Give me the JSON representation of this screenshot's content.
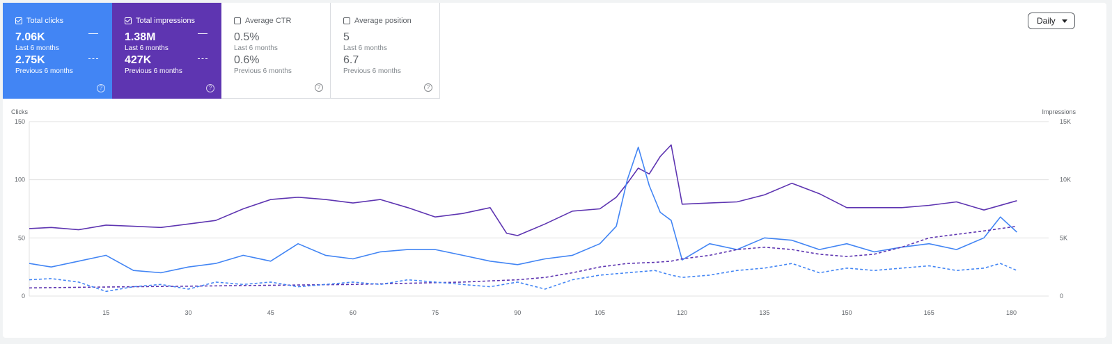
{
  "cards": [
    {
      "title": "Total clicks",
      "checked": true,
      "value_current": "7.06K",
      "label_current": "Last 6 months",
      "value_previous": "2.75K",
      "label_previous": "Previous 6 months",
      "help": "?"
    },
    {
      "title": "Total impressions",
      "checked": true,
      "value_current": "1.38M",
      "label_current": "Last 6 months",
      "value_previous": "427K",
      "label_previous": "Previous 6 months",
      "help": "?"
    },
    {
      "title": "Average CTR",
      "checked": false,
      "value_current": "0.5%",
      "label_current": "Last 6 months",
      "value_previous": "0.6%",
      "label_previous": "Previous 6 months",
      "help": "?"
    },
    {
      "title": "Average position",
      "checked": false,
      "value_current": "5",
      "label_current": "Last 6 months",
      "value_previous": "6.7",
      "label_previous": "Previous 6 months",
      "help": "?"
    }
  ],
  "granularity": {
    "selected": "Daily"
  },
  "colors": {
    "clicks": "#4285f4",
    "impressions": "#5e35b1",
    "grid": "#e0e0e0"
  },
  "chart_data": {
    "type": "line",
    "xlabel": "",
    "left_axis_label": "Clicks",
    "right_axis_label": "Impressions",
    "x_range": [
      1,
      184
    ],
    "x_ticks": [
      15,
      30,
      45,
      60,
      75,
      90,
      105,
      120,
      135,
      150,
      165,
      180
    ],
    "left_ylim": [
      0,
      150
    ],
    "left_ticks": [
      "0",
      "50",
      "100",
      "150"
    ],
    "right_ylim": [
      0,
      15000
    ],
    "right_ticks": [
      "0",
      "5K",
      "10K",
      "15K"
    ],
    "grid": true,
    "series": [
      {
        "axis": "right",
        "style": "solid",
        "color": "#5e35b1",
        "x": [
          1,
          5,
          10,
          15,
          20,
          25,
          30,
          35,
          40,
          45,
          50,
          55,
          60,
          65,
          70,
          75,
          80,
          85,
          88,
          90,
          95,
          100,
          105,
          108,
          110,
          112,
          114,
          116,
          118,
          120,
          125,
          130,
          135,
          140,
          145,
          150,
          155,
          160,
          165,
          170,
          175,
          181
        ],
        "values": [
          5800,
          5900,
          5700,
          6100,
          6000,
          5900,
          6200,
          6500,
          7500,
          8300,
          8500,
          8300,
          8000,
          8300,
          7600,
          6800,
          7100,
          7600,
          5400,
          5200,
          6200,
          7300,
          7500,
          8500,
          9700,
          11000,
          10500,
          12000,
          13000,
          7900,
          8000,
          8100,
          8700,
          9700,
          8800,
          7600,
          7600,
          7600,
          7800,
          8100,
          7400,
          8200
        ]
      },
      {
        "axis": "left",
        "style": "solid",
        "color": "#4285f4",
        "x": [
          1,
          5,
          10,
          15,
          20,
          25,
          30,
          35,
          40,
          45,
          50,
          55,
          60,
          65,
          70,
          75,
          80,
          85,
          90,
          95,
          100,
          105,
          108,
          110,
          112,
          114,
          116,
          118,
          120,
          125,
          130,
          135,
          140,
          145,
          150,
          155,
          160,
          165,
          170,
          175,
          178,
          181
        ],
        "values": [
          28,
          25,
          30,
          35,
          22,
          20,
          25,
          28,
          35,
          30,
          45,
          35,
          32,
          38,
          40,
          40,
          35,
          30,
          27,
          32,
          35,
          45,
          60,
          100,
          128,
          95,
          72,
          65,
          31,
          45,
          40,
          50,
          48,
          40,
          45,
          38,
          42,
          45,
          40,
          50,
          68,
          55
        ]
      },
      {
        "axis": "right",
        "style": "dashed",
        "color": "#5e35b1",
        "x": [
          1,
          10,
          20,
          30,
          40,
          50,
          60,
          70,
          80,
          85,
          90,
          95,
          100,
          105,
          110,
          115,
          118,
          120,
          125,
          130,
          135,
          140,
          145,
          150,
          155,
          160,
          165,
          170,
          175,
          181
        ],
        "values": [
          700,
          750,
          800,
          850,
          900,
          950,
          1000,
          1100,
          1200,
          1300,
          1400,
          1600,
          2000,
          2500,
          2800,
          2900,
          3000,
          3200,
          3500,
          4000,
          4200,
          4000,
          3600,
          3400,
          3600,
          4200,
          5000,
          5300,
          5600,
          6000
        ]
      },
      {
        "axis": "left",
        "style": "dashed",
        "color": "#4285f4",
        "x": [
          1,
          5,
          10,
          15,
          20,
          25,
          30,
          35,
          40,
          45,
          50,
          55,
          60,
          65,
          70,
          75,
          80,
          85,
          90,
          95,
          100,
          105,
          110,
          115,
          118,
          120,
          125,
          130,
          135,
          140,
          145,
          150,
          155,
          160,
          165,
          170,
          175,
          178,
          181
        ],
        "values": [
          14,
          15,
          12,
          4,
          8,
          10,
          6,
          12,
          10,
          12,
          8,
          10,
          12,
          10,
          14,
          12,
          10,
          8,
          12,
          6,
          14,
          18,
          20,
          22,
          18,
          16,
          18,
          22,
          24,
          28,
          20,
          24,
          22,
          24,
          26,
          22,
          24,
          28,
          22
        ]
      }
    ]
  }
}
